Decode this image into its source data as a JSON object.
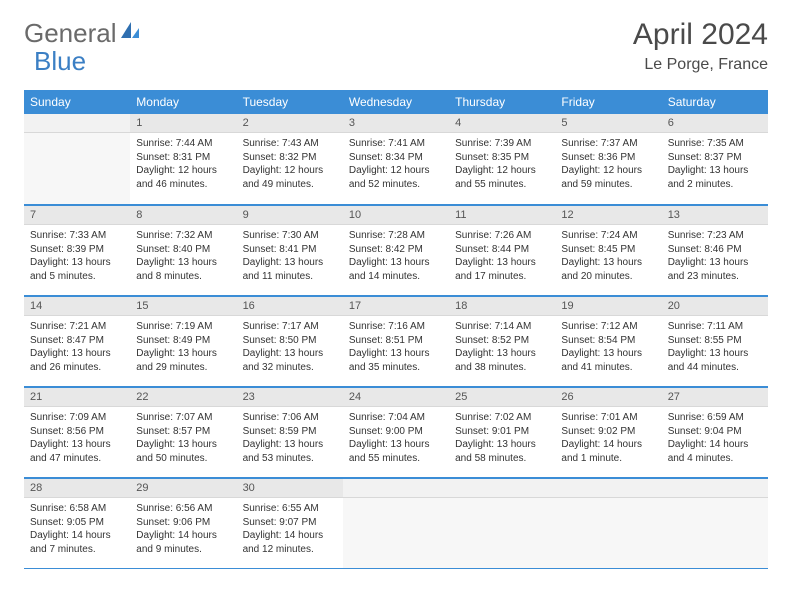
{
  "logo": {
    "text_a": "General",
    "text_b": "Blue"
  },
  "header": {
    "month": "April 2024",
    "location": "Le Porge, France"
  },
  "style": {
    "header_bg": "#3b8dd6",
    "header_fg": "#ffffff",
    "daynum_bg": "#e8e8e8",
    "empty_bg": "#f2f2f2",
    "sep_color": "#3b8dd6",
    "page_bg": "#ffffff",
    "text_color": "#333333"
  },
  "weekdays": [
    "Sunday",
    "Monday",
    "Tuesday",
    "Wednesday",
    "Thursday",
    "Friday",
    "Saturday"
  ],
  "weeks": [
    [
      null,
      {
        "n": "1",
        "sr": "7:44 AM",
        "ss": "8:31 PM",
        "dl": "12 hours and 46 minutes."
      },
      {
        "n": "2",
        "sr": "7:43 AM",
        "ss": "8:32 PM",
        "dl": "12 hours and 49 minutes."
      },
      {
        "n": "3",
        "sr": "7:41 AM",
        "ss": "8:34 PM",
        "dl": "12 hours and 52 minutes."
      },
      {
        "n": "4",
        "sr": "7:39 AM",
        "ss": "8:35 PM",
        "dl": "12 hours and 55 minutes."
      },
      {
        "n": "5",
        "sr": "7:37 AM",
        "ss": "8:36 PM",
        "dl": "12 hours and 59 minutes."
      },
      {
        "n": "6",
        "sr": "7:35 AM",
        "ss": "8:37 PM",
        "dl": "13 hours and 2 minutes."
      }
    ],
    [
      {
        "n": "7",
        "sr": "7:33 AM",
        "ss": "8:39 PM",
        "dl": "13 hours and 5 minutes."
      },
      {
        "n": "8",
        "sr": "7:32 AM",
        "ss": "8:40 PM",
        "dl": "13 hours and 8 minutes."
      },
      {
        "n": "9",
        "sr": "7:30 AM",
        "ss": "8:41 PM",
        "dl": "13 hours and 11 minutes."
      },
      {
        "n": "10",
        "sr": "7:28 AM",
        "ss": "8:42 PM",
        "dl": "13 hours and 14 minutes."
      },
      {
        "n": "11",
        "sr": "7:26 AM",
        "ss": "8:44 PM",
        "dl": "13 hours and 17 minutes."
      },
      {
        "n": "12",
        "sr": "7:24 AM",
        "ss": "8:45 PM",
        "dl": "13 hours and 20 minutes."
      },
      {
        "n": "13",
        "sr": "7:23 AM",
        "ss": "8:46 PM",
        "dl": "13 hours and 23 minutes."
      }
    ],
    [
      {
        "n": "14",
        "sr": "7:21 AM",
        "ss": "8:47 PM",
        "dl": "13 hours and 26 minutes."
      },
      {
        "n": "15",
        "sr": "7:19 AM",
        "ss": "8:49 PM",
        "dl": "13 hours and 29 minutes."
      },
      {
        "n": "16",
        "sr": "7:17 AM",
        "ss": "8:50 PM",
        "dl": "13 hours and 32 minutes."
      },
      {
        "n": "17",
        "sr": "7:16 AM",
        "ss": "8:51 PM",
        "dl": "13 hours and 35 minutes."
      },
      {
        "n": "18",
        "sr": "7:14 AM",
        "ss": "8:52 PM",
        "dl": "13 hours and 38 minutes."
      },
      {
        "n": "19",
        "sr": "7:12 AM",
        "ss": "8:54 PM",
        "dl": "13 hours and 41 minutes."
      },
      {
        "n": "20",
        "sr": "7:11 AM",
        "ss": "8:55 PM",
        "dl": "13 hours and 44 minutes."
      }
    ],
    [
      {
        "n": "21",
        "sr": "7:09 AM",
        "ss": "8:56 PM",
        "dl": "13 hours and 47 minutes."
      },
      {
        "n": "22",
        "sr": "7:07 AM",
        "ss": "8:57 PM",
        "dl": "13 hours and 50 minutes."
      },
      {
        "n": "23",
        "sr": "7:06 AM",
        "ss": "8:59 PM",
        "dl": "13 hours and 53 minutes."
      },
      {
        "n": "24",
        "sr": "7:04 AM",
        "ss": "9:00 PM",
        "dl": "13 hours and 55 minutes."
      },
      {
        "n": "25",
        "sr": "7:02 AM",
        "ss": "9:01 PM",
        "dl": "13 hours and 58 minutes."
      },
      {
        "n": "26",
        "sr": "7:01 AM",
        "ss": "9:02 PM",
        "dl": "14 hours and 1 minute."
      },
      {
        "n": "27",
        "sr": "6:59 AM",
        "ss": "9:04 PM",
        "dl": "14 hours and 4 minutes."
      }
    ],
    [
      {
        "n": "28",
        "sr": "6:58 AM",
        "ss": "9:05 PM",
        "dl": "14 hours and 7 minutes."
      },
      {
        "n": "29",
        "sr": "6:56 AM",
        "ss": "9:06 PM",
        "dl": "14 hours and 9 minutes."
      },
      {
        "n": "30",
        "sr": "6:55 AM",
        "ss": "9:07 PM",
        "dl": "14 hours and 12 minutes."
      },
      null,
      null,
      null,
      null
    ]
  ],
  "labels": {
    "sunrise": "Sunrise:",
    "sunset": "Sunset:",
    "daylight": "Daylight:"
  }
}
